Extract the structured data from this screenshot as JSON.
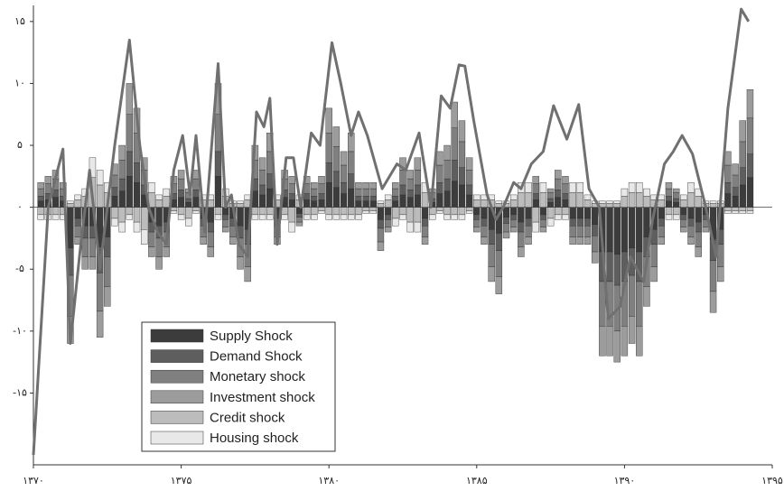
{
  "chart_data": {
    "type": "bar",
    "xlim": [
      1370,
      1395
    ],
    "ylim": [
      -20.8,
      16.3
    ],
    "xticks": [
      {
        "value": 1370,
        "label": "۱۳۷۰"
      },
      {
        "value": 1375,
        "label": "۱۳۷۵"
      },
      {
        "value": 1380,
        "label": "۱۳۸۰"
      },
      {
        "value": 1385,
        "label": "۱۳۸۵"
      },
      {
        "value": 1390,
        "label": "۱۳۹۰"
      },
      {
        "value": 1395,
        "label": "۱۳۹۵"
      }
    ],
    "yticks": [
      {
        "value": 15,
        "label": "۱۵"
      },
      {
        "value": 10,
        "label": "۱۰"
      },
      {
        "value": 5,
        "label": "۵"
      },
      {
        "value": 0,
        "label": "۰"
      },
      {
        "value": -5,
        "label": "-۵"
      },
      {
        "value": -10,
        "label": "-۱۰"
      },
      {
        "value": -15,
        "label": "-۱۵"
      }
    ],
    "x": [
      1370.25,
      1370.5,
      1370.75,
      1371,
      1371.25,
      1371.5,
      1371.75,
      1372,
      1372.25,
      1372.5,
      1372.75,
      1373,
      1373.25,
      1373.5,
      1373.75,
      1374,
      1374.25,
      1374.5,
      1374.75,
      1375,
      1375.25,
      1375.5,
      1375.75,
      1376,
      1376.25,
      1376.5,
      1376.75,
      1377,
      1377.25,
      1377.5,
      1377.75,
      1378,
      1378.25,
      1378.5,
      1378.75,
      1379,
      1379.25,
      1379.5,
      1379.75,
      1380,
      1380.25,
      1380.5,
      1380.75,
      1381,
      1381.25,
      1381.5,
      1381.75,
      1382,
      1382.25,
      1382.5,
      1382.75,
      1383,
      1383.25,
      1383.5,
      1383.75,
      1384,
      1384.25,
      1384.5,
      1384.75,
      1385,
      1385.25,
      1385.5,
      1385.75,
      1386,
      1386.25,
      1386.5,
      1386.75,
      1387,
      1387.25,
      1387.5,
      1387.75,
      1388,
      1388.25,
      1388.5,
      1388.75,
      1389,
      1389.25,
      1389.5,
      1389.75,
      1390,
      1390.25,
      1390.5,
      1390.75,
      1391,
      1391.25,
      1391.5,
      1391.75,
      1392,
      1392.25,
      1392.5,
      1392.75,
      1393,
      1393.25,
      1393.5,
      1393.75,
      1394,
      1394.25
    ],
    "series": [
      {
        "name": "Supply Shock",
        "color": "#3c3c3c",
        "values": [
          0.5,
          0.6,
          0.8,
          0.5,
          -3.3,
          -0.9,
          -1.5,
          -1.5,
          -3.2,
          -2.4,
          0.9,
          1.3,
          2.5,
          2,
          1,
          -1.2,
          -1.5,
          -1.2,
          0.6,
          0.8,
          0.4,
          0.8,
          -0.9,
          -1.2,
          2.5,
          -0.6,
          -0.9,
          -1.5,
          -1.8,
          1.3,
          1,
          1.5,
          -0.9,
          0.8,
          0.6,
          -0.5,
          0.6,
          0.5,
          0.6,
          2,
          1.6,
          1.1,
          1.5,
          0.5,
          0.5,
          0.5,
          -1,
          -0.6,
          0.5,
          1,
          0.8,
          1,
          -0.9,
          0.4,
          1.1,
          1.3,
          2.1,
          1.8,
          1,
          -0.6,
          -0.9,
          -1.8,
          -2.1,
          -0.8,
          -0.6,
          -1.2,
          -0.9,
          0.6,
          -0.6,
          0.4,
          0.8,
          0.6,
          -0.9,
          -0.9,
          -0.9,
          -1.4,
          -3.6,
          -3.6,
          -3.8,
          -3.6,
          -3.3,
          -3.6,
          -2.4,
          -1.8,
          -0.9,
          0.5,
          0.4,
          -0.6,
          -0.9,
          -1.2,
          -0.6,
          -2.6,
          -1.8,
          1.1,
          0.9,
          1.8,
          2.4
        ]
      },
      {
        "name": "Demand Shock",
        "color": "#5e5e5e",
        "values": [
          0.4,
          0.5,
          0.6,
          0.4,
          -2.2,
          -0.6,
          -1,
          -1,
          -2.1,
          -1.6,
          0.7,
          1,
          2,
          1.6,
          0.8,
          -0.8,
          -1,
          -0.8,
          0.5,
          0.6,
          0.3,
          0.6,
          -0.6,
          -0.8,
          2,
          -0.4,
          -0.6,
          -1,
          -1.2,
          1,
          0.8,
          1.2,
          -0.6,
          0.6,
          0.5,
          -0.3,
          0.5,
          0.4,
          0.5,
          1.6,
          1.3,
          0.9,
          1.2,
          0.4,
          0.4,
          0.4,
          -0.7,
          -0.4,
          0.4,
          0.8,
          0.6,
          0.8,
          -0.6,
          0.3,
          0.9,
          1,
          1.7,
          1.4,
          0.8,
          -0.4,
          -0.6,
          -1.2,
          -1.4,
          -0.5,
          -0.4,
          -0.8,
          -0.6,
          0.5,
          -0.4,
          0.3,
          0.6,
          0.5,
          -0.6,
          -0.6,
          -0.6,
          -0.9,
          -2.4,
          -2.4,
          -2.5,
          -2.4,
          -2.2,
          -2.4,
          -1.6,
          -1.2,
          -0.6,
          0.4,
          0.3,
          -0.4,
          -0.6,
          -0.8,
          -0.4,
          -1.7,
          -1.2,
          0.9,
          0.7,
          1.4,
          1.9
        ]
      },
      {
        "name": "Monetary shock",
        "color": "#808080",
        "values": [
          0.6,
          0.8,
          0.9,
          0.6,
          -3.3,
          -0.9,
          -1.5,
          -1.5,
          -3.1,
          -2.4,
          1,
          1.5,
          3,
          2.4,
          1.2,
          -1.2,
          -1.5,
          -1.2,
          0.8,
          0.9,
          0.5,
          0.9,
          -0.9,
          -1.2,
          3,
          -0.6,
          -0.9,
          -1.5,
          -1.8,
          1.5,
          1.2,
          1.8,
          -0.9,
          0.9,
          0.8,
          -0.4,
          0.8,
          0.6,
          0.8,
          2.4,
          2,
          1.4,
          1.8,
          0.6,
          0.6,
          0.6,
          -1.1,
          -0.6,
          0.6,
          1.2,
          0.9,
          1.2,
          -0.9,
          0.5,
          1.4,
          1.5,
          2.6,
          2.1,
          1.2,
          -0.6,
          -0.9,
          -1.8,
          -2.1,
          -0.7,
          -0.6,
          -1.2,
          -0.9,
          0.8,
          -0.6,
          0.5,
          0.9,
          0.8,
          -0.9,
          -0.9,
          -0.9,
          -1.3,
          -3.6,
          -3.6,
          -3.7,
          -3.6,
          -3.3,
          -3.6,
          -2.4,
          -1.8,
          -0.9,
          0.6,
          0.5,
          -0.6,
          -0.9,
          -1.2,
          -0.6,
          -2.5,
          -1.8,
          1.4,
          1,
          2.1,
          2.9
        ]
      },
      {
        "name": "Investment shock",
        "color": "#9c9c9c",
        "values": [
          0.5,
          0.6,
          0.7,
          0.5,
          -2.2,
          -0.6,
          -1,
          -1,
          -2.1,
          -1.6,
          0.9,
          1.2,
          2.5,
          2,
          1,
          -0.8,
          -1,
          -0.8,
          0.6,
          0.7,
          0.3,
          0.7,
          -0.6,
          -0.8,
          2.5,
          -0.4,
          -0.6,
          -1,
          -1.2,
          1.2,
          1,
          1.5,
          -0.6,
          0.7,
          0.6,
          -0.3,
          0.6,
          0.5,
          0.6,
          2,
          1.6,
          1.1,
          1.5,
          0.5,
          0.5,
          0.5,
          -0.7,
          -0.4,
          0.5,
          1,
          0.7,
          1,
          -0.6,
          0.3,
          1.1,
          1.2,
          2.1,
          1.7,
          1,
          -0.4,
          -0.6,
          -1.2,
          -1.4,
          -0.5,
          -0.4,
          -0.8,
          -0.6,
          0.6,
          -0.4,
          0.3,
          0.7,
          0.6,
          -0.6,
          -0.6,
          -0.6,
          -0.9,
          -2.4,
          -2.4,
          -2.5,
          -2.4,
          -2.2,
          -2.4,
          -1.6,
          -1.2,
          -0.6,
          0.5,
          0.3,
          -0.4,
          -0.6,
          -0.8,
          -0.4,
          -1.7,
          -1.2,
          1.1,
          0.9,
          1.7,
          2.3
        ]
      },
      {
        "name": "Credit shock",
        "color": "#bcbcbc",
        "values": [
          -0.6,
          -0.6,
          -0.6,
          -0.6,
          0.3,
          0.6,
          0.9,
          2.4,
          1.8,
          1.2,
          -0.9,
          -1.2,
          -0.6,
          -1.2,
          -1.8,
          1.2,
          0.6,
          0.9,
          -0.3,
          -0.6,
          -0.9,
          -0.3,
          0.6,
          0.6,
          -0.6,
          0.9,
          0.3,
          0.3,
          0.6,
          -0.6,
          -0.6,
          -0.6,
          0.6,
          -0.6,
          -1.2,
          0.6,
          -0.6,
          -0.6,
          -0.3,
          -0.6,
          -0.6,
          -0.6,
          -0.6,
          -0.6,
          -0.3,
          -0.3,
          0.3,
          0.6,
          -0.9,
          -0.6,
          -1.2,
          -1.2,
          1.2,
          -0.6,
          -0.3,
          -0.6,
          -0.6,
          -0.6,
          -0.3,
          0.6,
          0.6,
          0.6,
          0.3,
          0.3,
          0.6,
          1.2,
          1.2,
          -1.2,
          1.2,
          -0.9,
          -0.6,
          -0.6,
          1.2,
          1.2,
          0.6,
          0.3,
          0.3,
          0.3,
          0.3,
          0.9,
          1.2,
          1.2,
          0.9,
          0.6,
          0.6,
          -0.6,
          -0.6,
          0.6,
          1.2,
          0.9,
          0.3,
          0.3,
          0.3,
          -0.3,
          -0.3,
          -0.3,
          -0.3
        ]
      },
      {
        "name": "Housing shock",
        "color": "#e8e8e8",
        "values": [
          -0.4,
          -0.4,
          -0.4,
          -0.4,
          0.2,
          0.4,
          0.6,
          1.6,
          1.2,
          0.8,
          -0.6,
          -0.8,
          -0.4,
          -0.8,
          -1.2,
          0.8,
          0.4,
          0.6,
          -0.2,
          -0.4,
          -0.6,
          -0.2,
          0.4,
          0.4,
          -0.4,
          0.6,
          0.2,
          0.2,
          0.4,
          -0.4,
          -0.4,
          -0.4,
          0.4,
          -0.4,
          -0.8,
          0.4,
          -0.4,
          -0.4,
          -0.2,
          -0.4,
          -0.4,
          -0.4,
          -0.4,
          -0.4,
          -0.2,
          -0.2,
          0.2,
          0.4,
          -0.6,
          -0.4,
          -0.8,
          -0.8,
          0.8,
          -0.4,
          -0.2,
          -0.4,
          -0.4,
          -0.4,
          -0.2,
          0.4,
          0.4,
          0.4,
          0.2,
          0.2,
          0.4,
          0.8,
          0.8,
          -0.8,
          0.8,
          -0.6,
          -0.4,
          -0.4,
          0.8,
          0.8,
          0.4,
          0.2,
          0.2,
          0.2,
          0.2,
          0.6,
          0.8,
          0.8,
          0.6,
          0.4,
          0.4,
          -0.4,
          -0.4,
          0.4,
          0.8,
          0.6,
          0.2,
          0.2,
          0.2,
          -0.2,
          -0.2,
          -0.2,
          -0.2
        ]
      }
    ],
    "line": {
      "color": "#707070",
      "x": [
        1370,
        1370.25,
        1370.5,
        1371,
        1371.25,
        1371.6,
        1371.9,
        1372.25,
        1372.75,
        1373.25,
        1373.6,
        1373.9,
        1374.2,
        1374.5,
        1374.75,
        1375.05,
        1375.3,
        1375.5,
        1375.8,
        1376.25,
        1376.5,
        1376.7,
        1376.95,
        1377.25,
        1377.55,
        1377.8,
        1378,
        1378.25,
        1378.55,
        1378.8,
        1379.05,
        1379.4,
        1379.7,
        1380.1,
        1380.4,
        1380.75,
        1381,
        1381.3,
        1381.8,
        1382.3,
        1382.6,
        1383.05,
        1383.45,
        1383.8,
        1384.1,
        1384.4,
        1384.6,
        1384.9,
        1385.35,
        1385.65,
        1385.9,
        1386.25,
        1386.5,
        1386.85,
        1387.25,
        1387.6,
        1388.05,
        1388.45,
        1388.8,
        1389.15,
        1389.45,
        1389.85,
        1390.2,
        1390.65,
        1390.95,
        1391.35,
        1391.65,
        1391.95,
        1392.3,
        1392.75,
        1393.1,
        1393.5,
        1393.95,
        1394.2
      ],
      "values": [
        -20,
        -10,
        0,
        4.7,
        -11,
        -3,
        3,
        -5,
        5,
        13.5,
        5,
        0,
        -2,
        -3,
        3,
        5.8,
        1,
        5.8,
        -2,
        11.6,
        0,
        1,
        -3,
        -4,
        7.7,
        6.5,
        8.8,
        -3,
        4,
        4,
        0,
        6,
        5,
        13.3,
        10,
        5.8,
        7.7,
        5.8,
        1.5,
        3.5,
        3,
        6,
        0,
        9,
        8,
        11.5,
        11.4,
        7,
        1,
        -1,
        0,
        2,
        1.5,
        3.5,
        4.5,
        8.2,
        5.5,
        8.3,
        1.5,
        0,
        -9,
        -8,
        -4,
        -6,
        -1,
        3.5,
        4.5,
        5.8,
        4.3,
        0,
        -4,
        8,
        16,
        15
      ]
    }
  }
}
